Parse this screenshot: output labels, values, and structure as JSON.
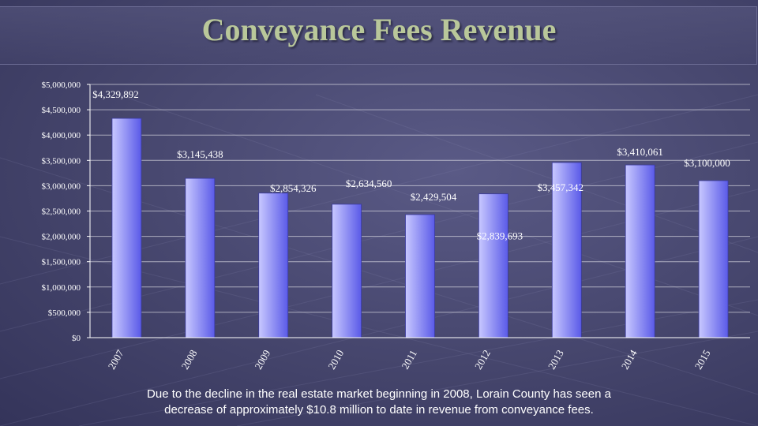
{
  "page": {
    "title": "Conveyance Fees Revenue",
    "caption_line1": "Due to the decline in the real estate market beginning in 2008, Lorain County has seen a",
    "caption_line2": "decrease of approximately $10.8 million to date in revenue from conveyance fees."
  },
  "colors": {
    "bar_light": "#c8c8ff",
    "bar_dark": "#5a5ae8",
    "title": "#b9c79a",
    "text": "#ffffff",
    "background": "#45456c"
  },
  "chart_data": {
    "type": "bar",
    "title": "Conveyance Fees Revenue",
    "xlabel": "",
    "ylabel": "",
    "ylim": [
      0,
      5000000
    ],
    "grid": true,
    "categories": [
      "2007",
      "2008",
      "2009",
      "2010",
      "2011",
      "2012",
      "2013",
      "2014",
      "2015"
    ],
    "values": [
      4329892,
      3145438,
      2854326,
      2634560,
      2429504,
      2839693,
      3457342,
      3410061,
      3100000
    ],
    "data_labels": [
      "$4,329,892",
      "$3,145,438",
      "$2,854,326",
      "$2,634,560",
      "$2,429,504",
      "$2,839,693",
      "$3,457,342",
      "$3,410,061",
      "$3,100,000"
    ],
    "y_ticks": [
      0,
      500000,
      1000000,
      1500000,
      2000000,
      2500000,
      3000000,
      3500000,
      4000000,
      4500000,
      5000000
    ],
    "y_tick_labels": [
      "$0",
      "$500,000",
      "$1,000,000",
      "$1,500,000",
      "$2,000,000",
      "$2,500,000",
      "$3,000,000",
      "$3,500,000",
      "$4,000,000",
      "$4,500,000",
      "$5,000,000"
    ]
  }
}
